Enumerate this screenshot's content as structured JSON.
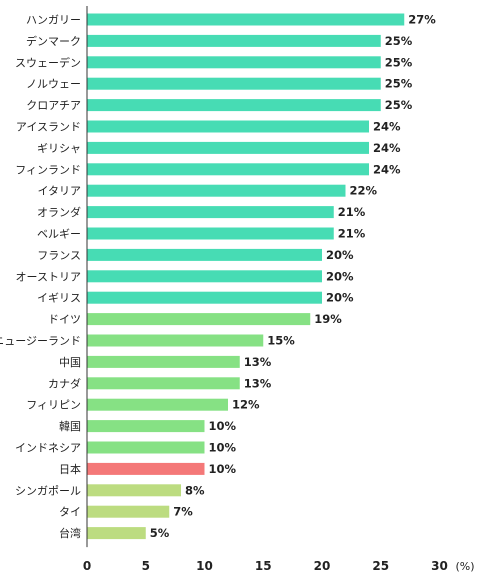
{
  "chart_data": {
    "type": "bar",
    "orientation": "horizontal",
    "categories": [
      "ハンガリー",
      "デンマーク",
      "スウェーデン",
      "ノルウェー",
      "クロアチア",
      "アイスランド",
      "ギリシャ",
      "フィンランド",
      "イタリア",
      "オランダ",
      "ベルギー",
      "フランス",
      "オーストリア",
      "イギリス",
      "ドイツ",
      "ニュージーランド",
      "中国",
      "カナダ",
      "フィリピン",
      "韓国",
      "インドネシア",
      "日本",
      "シンガポール",
      "タイ",
      "台湾"
    ],
    "values": [
      27,
      25,
      25,
      25,
      25,
      24,
      24,
      24,
      22,
      21,
      21,
      20,
      20,
      20,
      19,
      15,
      13,
      13,
      12,
      10,
      10,
      10,
      8,
      7,
      5
    ],
    "value_labels": [
      "27%",
      "25%",
      "25%",
      "25%",
      "25%",
      "24%",
      "24%",
      "24%",
      "22%",
      "21%",
      "21%",
      "20%",
      "20%",
      "20%",
      "19%",
      "15%",
      "13%",
      "13%",
      "12%",
      "10%",
      "10%",
      "10%",
      "8%",
      "7%",
      "5%"
    ],
    "bar_colors": [
      "#47dcb4",
      "#47dcb4",
      "#47dcb4",
      "#47dcb4",
      "#47dcb4",
      "#47dcb4",
      "#47dcb4",
      "#47dcb4",
      "#47dcb4",
      "#47dcb4",
      "#47dcb4",
      "#47dcb4",
      "#47dcb4",
      "#47dcb4",
      "#86e184",
      "#86e184",
      "#86e184",
      "#86e184",
      "#86e184",
      "#86e184",
      "#86e184",
      "#f47878",
      "#bcdc80",
      "#bcdc80",
      "#bcdc80"
    ],
    "xlim": [
      0,
      30
    ],
    "xticks": [
      0,
      5,
      10,
      15,
      20,
      25,
      30
    ],
    "x_unit": "(%)",
    "grid": false,
    "axis_color": "#333333"
  }
}
